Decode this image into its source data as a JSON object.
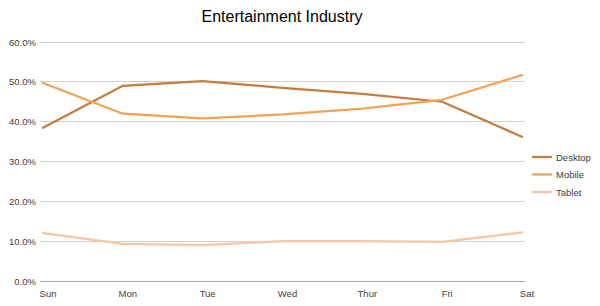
{
  "chart_data": {
    "type": "line",
    "title": "Entertainment Industry",
    "categories": [
      "Sun",
      "Mon",
      "Tue",
      "Wed",
      "Thur",
      "Fri",
      "Sat"
    ],
    "series": [
      {
        "name": "Desktop",
        "color": "#c47d41",
        "values": [
          38.5,
          49,
          50.2,
          48.5,
          47,
          45,
          36.2
        ]
      },
      {
        "name": "Mobile",
        "color": "#f2a35a",
        "values": [
          49.7,
          42,
          40.8,
          41.8,
          43.3,
          45.5,
          51.7
        ]
      },
      {
        "name": "Tablet",
        "color": "#f7c7a5",
        "values": [
          12,
          9.3,
          9,
          10,
          10,
          9.8,
          12.2
        ]
      }
    ],
    "ylim": [
      0,
      60
    ],
    "yticks": [
      {
        "value": 0,
        "label": "0.0%"
      },
      {
        "value": 10,
        "label": "10.0%"
      },
      {
        "value": 20,
        "label": "20.0%"
      },
      {
        "value": 30,
        "label": "30.0%"
      },
      {
        "value": 40,
        "label": "40.0%"
      },
      {
        "value": 50,
        "label": "50.0%"
      },
      {
        "value": 60,
        "label": "60.0%"
      }
    ],
    "grid": true,
    "legend": "right",
    "marker": "none",
    "line_style": "solid"
  }
}
